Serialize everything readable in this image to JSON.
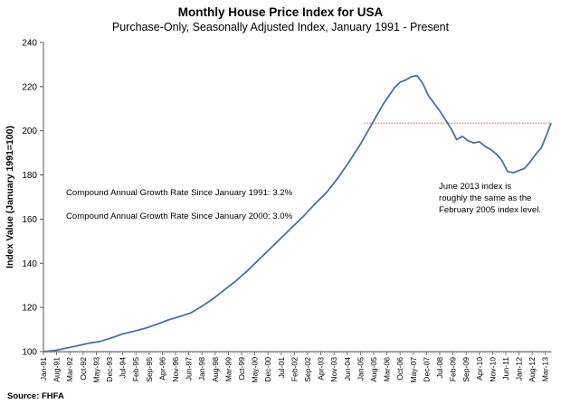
{
  "chart_data": {
    "type": "line",
    "title": "Monthly House Price Index for USA",
    "subtitle": "Purchase-Only, Seasonally Adjusted Index, January 1991 - Present",
    "ylabel": "Index Value (January 1991=100)",
    "xlabel": "",
    "ylim": [
      100,
      240
    ],
    "yticks": [
      100,
      120,
      140,
      160,
      180,
      200,
      220,
      240
    ],
    "grid": false,
    "legend": "none",
    "x_range": [
      "1991-01",
      "2013-06"
    ],
    "xtick_labels": [
      "Jan-91",
      "Aug-91",
      "Mar-92",
      "Oct-92",
      "May-93",
      "Dec-93",
      "Jul-94",
      "Feb-95",
      "Sep-95",
      "Apr-96",
      "Nov-96",
      "Jun-97",
      "Jan-98",
      "Aug-98",
      "Mar-99",
      "Oct-99",
      "May-00",
      "Dec-00",
      "Jul-01",
      "Feb-02",
      "Sep-02",
      "Apr-03",
      "Nov-03",
      "Jun-04",
      "Jan-05",
      "Aug-05",
      "Mar-06",
      "Oct-06",
      "May-07",
      "Dec-07",
      "Jul-08",
      "Feb-09",
      "Sep-09",
      "Apr-10",
      "Nov-10",
      "Jun-11",
      "Jan-12",
      "Aug-12",
      "Mar-13"
    ],
    "series": [
      {
        "color": "#4a6fa8",
        "points": [
          [
            "1991-01",
            100.0
          ],
          [
            "1991-07",
            100.5
          ],
          [
            "1992-01",
            101.5
          ],
          [
            "1992-07",
            102.6
          ],
          [
            "1993-01",
            103.8
          ],
          [
            "1993-07",
            104.6
          ],
          [
            "1994-01",
            106.2
          ],
          [
            "1994-07",
            108.0
          ],
          [
            "1995-01",
            109.2
          ],
          [
            "1995-07",
            110.6
          ],
          [
            "1996-01",
            112.3
          ],
          [
            "1996-07",
            114.3
          ],
          [
            "1997-01",
            115.8
          ],
          [
            "1997-07",
            117.5
          ],
          [
            "1998-01",
            120.5
          ],
          [
            "1998-07",
            124.0
          ],
          [
            "1999-01",
            128.0
          ],
          [
            "1999-07",
            132.0
          ],
          [
            "2000-01",
            136.5
          ],
          [
            "2000-07",
            141.5
          ],
          [
            "2001-01",
            146.5
          ],
          [
            "2001-07",
            151.5
          ],
          [
            "2002-01",
            156.5
          ],
          [
            "2002-07",
            161.5
          ],
          [
            "2003-01",
            167.0
          ],
          [
            "2003-07",
            172.0
          ],
          [
            "2004-01",
            178.5
          ],
          [
            "2004-07",
            186.0
          ],
          [
            "2005-01",
            194.0
          ],
          [
            "2005-07",
            203.0
          ],
          [
            "2006-01",
            212.0
          ],
          [
            "2006-07",
            219.5
          ],
          [
            "2006-10",
            222.0
          ],
          [
            "2007-01",
            223.0
          ],
          [
            "2007-04",
            224.5
          ],
          [
            "2007-07",
            225.0
          ],
          [
            "2007-10",
            221.5
          ],
          [
            "2008-01",
            216.0
          ],
          [
            "2008-07",
            209.0
          ],
          [
            "2009-01",
            201.0
          ],
          [
            "2009-04",
            196.0
          ],
          [
            "2009-07",
            197.5
          ],
          [
            "2009-10",
            195.5
          ],
          [
            "2010-01",
            194.5
          ],
          [
            "2010-04",
            195.0
          ],
          [
            "2010-07",
            193.0
          ],
          [
            "2010-10",
            191.5
          ],
          [
            "2011-01",
            189.5
          ],
          [
            "2011-04",
            186.5
          ],
          [
            "2011-07",
            181.5
          ],
          [
            "2011-10",
            181.0
          ],
          [
            "2012-01",
            182.0
          ],
          [
            "2012-04",
            183.0
          ],
          [
            "2012-07",
            186.0
          ],
          [
            "2012-10",
            189.5
          ],
          [
            "2013-01",
            192.5
          ],
          [
            "2013-04",
            199.0
          ],
          [
            "2013-06",
            203.5
          ]
        ]
      }
    ],
    "reference_line": {
      "y": 203.5,
      "from": "2005-03",
      "to": "2013-06",
      "color": "#d9534f",
      "style": "dotted"
    },
    "annotations": [
      "Compound Annual Growth Rate Since January 1991:  3.2%",
      "Compound Annual Growth Rate Since January 2000:  3.0%",
      "June 2013 index is",
      "roughly the same as the",
      "February 2005 index level."
    ],
    "source": "Source: FHFA"
  }
}
